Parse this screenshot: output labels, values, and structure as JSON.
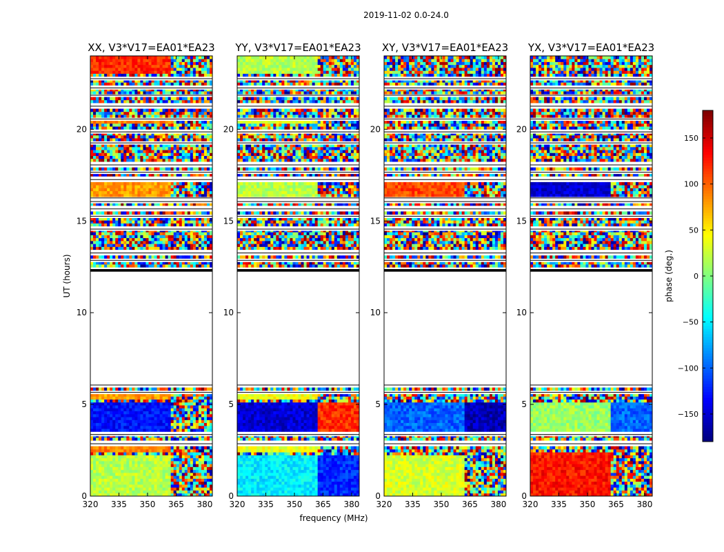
{
  "suptitle": "2019-11-02 0.0-24.0",
  "xlabel": "frequency (MHz)",
  "ylabel": "UT (hours)",
  "colorbar": {
    "label": "phase (deg.)",
    "ticks": [
      "150",
      "100",
      "50",
      "0",
      "−50",
      "−100",
      "−150"
    ],
    "range": [
      -180,
      180
    ],
    "colormap": "jet"
  },
  "chart_data": {
    "type": "heatmap",
    "xlim": [
      320,
      384
    ],
    "ylim": [
      0,
      24
    ],
    "xticks": [
      "320",
      "335",
      "350",
      "365",
      "380"
    ],
    "yticks": [
      "0",
      "5",
      "10",
      "15",
      "20"
    ],
    "colormap": "jet",
    "value_range": [
      -180,
      180
    ],
    "no_data_ut_range": [
      6.1,
      12.3
    ],
    "panels": [
      {
        "title": "XX, V3*V17=EA01*EA23"
      },
      {
        "title": "YY, V3*V17=EA01*EA23"
      },
      {
        "title": "XY, V3*V17=EA01*EA23"
      },
      {
        "title": "YX, V3*V17=EA01*EA23"
      }
    ]
  }
}
